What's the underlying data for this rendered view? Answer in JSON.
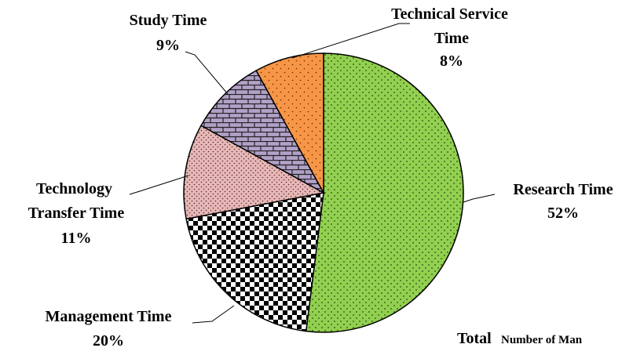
{
  "chart_data": {
    "type": "pie",
    "categories": [
      "Research Time",
      "Management Time",
      "Technology Transfer Time",
      "Study Time",
      "Technical Service Time"
    ],
    "values": [
      52,
      20,
      11,
      9,
      8
    ],
    "value_labels": [
      "52%",
      "20%",
      "11%",
      "9%",
      "8%"
    ],
    "colors": [
      "#92d050",
      "#000000",
      "#e6b8b7",
      "#b1a0c7",
      "#f79646"
    ],
    "annotations": [
      "Total",
      "Number of Man"
    ]
  }
}
